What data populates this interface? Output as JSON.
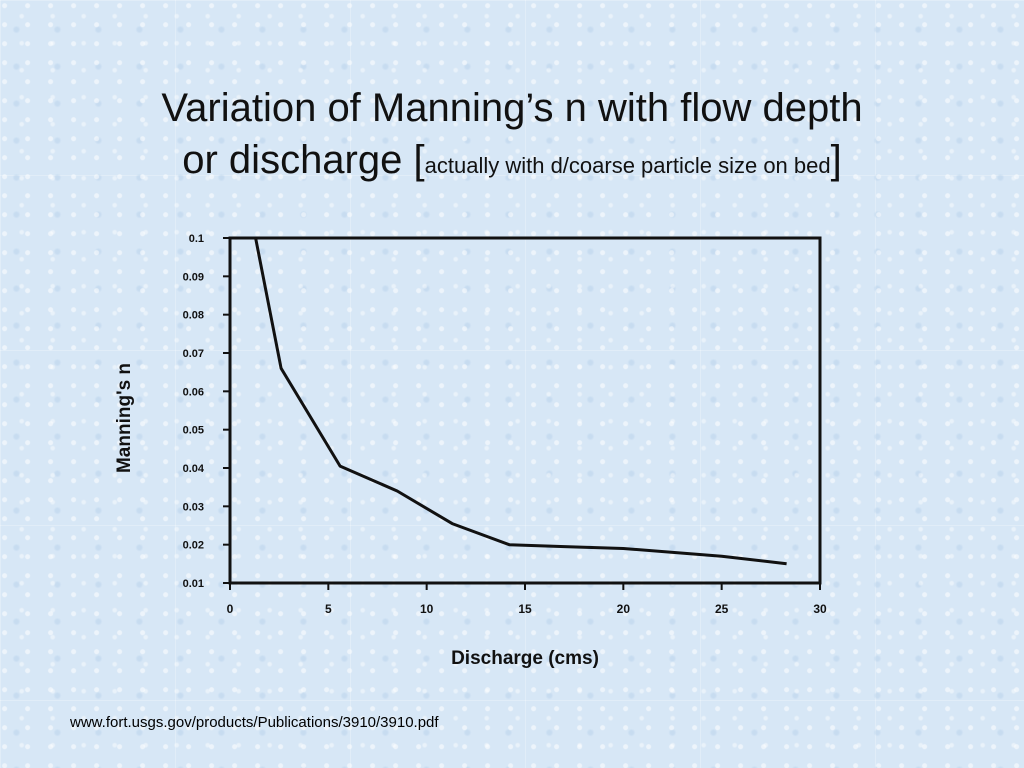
{
  "slide": {
    "title_line1": "Variation of Manning’s n with flow depth",
    "title_line2_main": "or discharge",
    "title_bracket_open": "[",
    "title_note": "actually with d/coarse particle size on bed",
    "title_bracket_close": "]",
    "source": "www.fort.usgs.gov/products/Publications/3910/3910.pdf"
  },
  "chart_data": {
    "type": "line",
    "xlabel": "Discharge (cms)",
    "ylabel": "Manning's n",
    "xlim": [
      0,
      30
    ],
    "ylim": [
      0.01,
      0.1
    ],
    "x_ticks": [
      0,
      5,
      10,
      15,
      20,
      25,
      30
    ],
    "x_tick_labels": [
      "0",
      "5",
      "10",
      "15",
      "20",
      "25",
      "30"
    ],
    "y_ticks": [
      0.01,
      0.02,
      0.03,
      0.04,
      0.05,
      0.06,
      0.07,
      0.08,
      0.09,
      0.1
    ],
    "y_tick_labels": [
      "0.01",
      "0.02",
      "0.03",
      "0.04",
      "0.05",
      "0.06",
      "0.07",
      "0.08",
      "0.09",
      "0.1"
    ],
    "grid": false,
    "series": [
      {
        "x": [
          1.3,
          2.6,
          5.6,
          8.5,
          11.3,
          14.2,
          17.0,
          20.0,
          25.0,
          28.3
        ],
        "y": [
          0.1,
          0.066,
          0.0405,
          0.034,
          0.0255,
          0.02,
          0.0195,
          0.019,
          0.017,
          0.015
        ]
      }
    ],
    "colors": {
      "line": "#111111",
      "axes": "#111111"
    }
  }
}
